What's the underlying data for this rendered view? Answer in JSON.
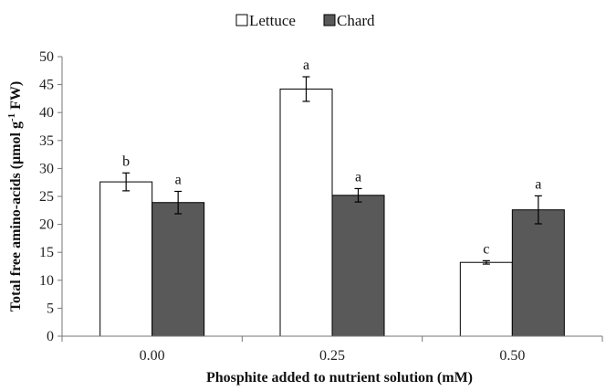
{
  "chart_data": {
    "type": "bar",
    "categories": [
      "0.00",
      "0.25",
      "0.50"
    ],
    "series": [
      {
        "name": "Lettuce",
        "color": "#ffffff",
        "values": [
          27.6,
          44.2,
          13.2
        ],
        "errors": [
          1.6,
          2.2,
          0.3
        ],
        "letters": [
          "b",
          "a",
          "c"
        ]
      },
      {
        "name": "Chard",
        "color": "#595959",
        "values": [
          23.9,
          25.2,
          22.6
        ],
        "errors": [
          2.0,
          1.2,
          2.5
        ],
        "letters": [
          "a",
          "a",
          "a"
        ]
      }
    ],
    "xlabel": "Phosphite added to nutrient  solution (mM)",
    "ylabel_main": "Total free amino-acids (μmol g",
    "ylabel_sup": "-1",
    "ylabel_end": " FW)",
    "ylim": [
      0,
      50
    ],
    "yticks": [
      "0",
      "5",
      "10",
      "15",
      "20",
      "25",
      "30",
      "35",
      "40",
      "45",
      "50"
    ],
    "legend_position": "top-center",
    "grid": false
  }
}
